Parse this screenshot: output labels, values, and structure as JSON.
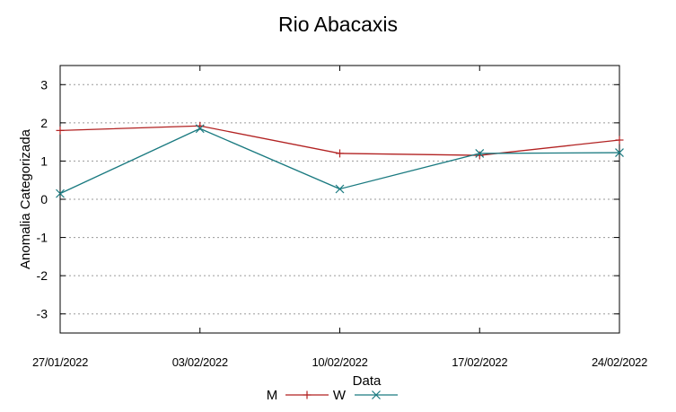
{
  "chart_data": {
    "type": "line",
    "title": "Rio Abacaxis",
    "xlabel": "Data",
    "ylabel": "Anomalia Categorizada",
    "categories": [
      "27/01/2022",
      "03/02/2022",
      "10/02/2022",
      "17/02/2022",
      "24/02/2022"
    ],
    "ylim": [
      -3.5,
      3.5
    ],
    "yticks": [
      "-3",
      "-2",
      "-1",
      "0",
      "1",
      "2",
      "3"
    ],
    "grid": true,
    "legend_position": "bottom",
    "series": [
      {
        "name": "M",
        "color": "#b22222",
        "marker": "plus",
        "values": [
          1.8,
          1.92,
          1.2,
          1.15,
          1.55
        ]
      },
      {
        "name": "W",
        "color": "#1a7a80",
        "marker": "cross",
        "values": [
          0.15,
          1.85,
          0.27,
          1.2,
          1.22
        ]
      }
    ]
  }
}
